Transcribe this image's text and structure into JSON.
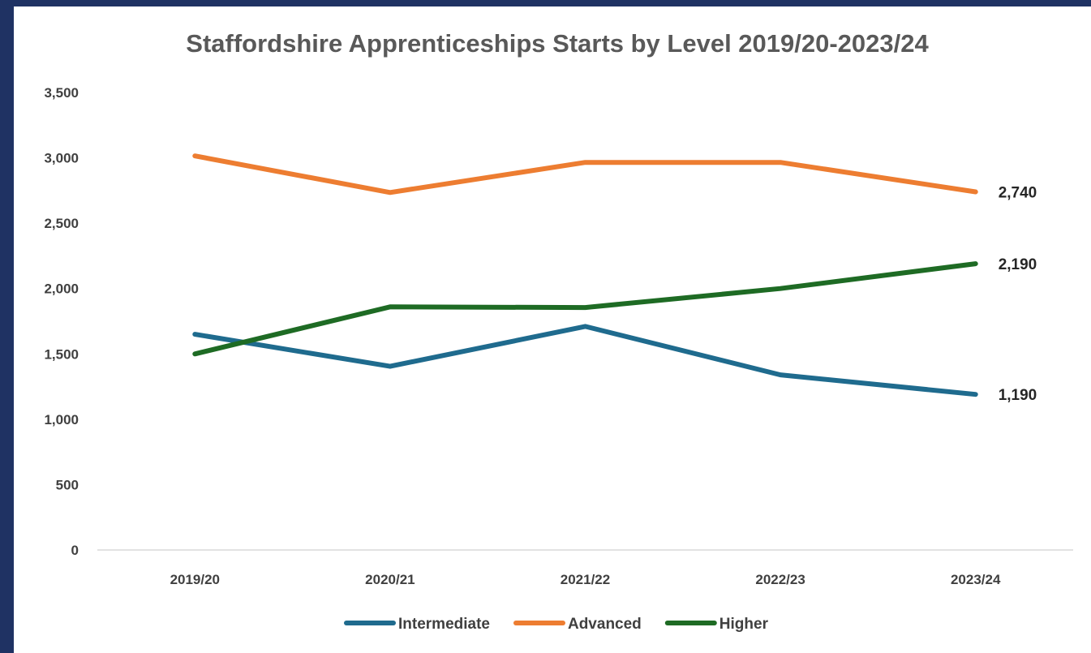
{
  "chart_data": {
    "type": "line",
    "title": "Staffordshire Apprenticeships Starts by Level 2019/20-2023/24",
    "categories": [
      "2019/20",
      "2020/21",
      "2021/22",
      "2022/23",
      "2023/24"
    ],
    "series": [
      {
        "name": "Intermediate",
        "color": "#1f6b8e",
        "values": [
          1650,
          1405,
          1710,
          1340,
          1190
        ],
        "end_label": "1,190"
      },
      {
        "name": "Advanced",
        "color": "#ed7d31",
        "values": [
          3015,
          2735,
          2965,
          2965,
          2740
        ],
        "end_label": "2,740"
      },
      {
        "name": "Higher",
        "color": "#1e6b24",
        "values": [
          1500,
          1860,
          1855,
          2000,
          2190
        ],
        "end_label": "2,190"
      }
    ],
    "ylim": [
      0,
      3500
    ],
    "yticks": [
      0,
      500,
      1000,
      1500,
      2000,
      2500,
      3000,
      3500
    ],
    "ytick_labels": [
      "0",
      "500",
      "1,000",
      "1,500",
      "2,000",
      "2,500",
      "3,000",
      "3,500"
    ],
    "xlabel": "",
    "ylabel": "",
    "grid": false,
    "legend_position": "bottom"
  }
}
